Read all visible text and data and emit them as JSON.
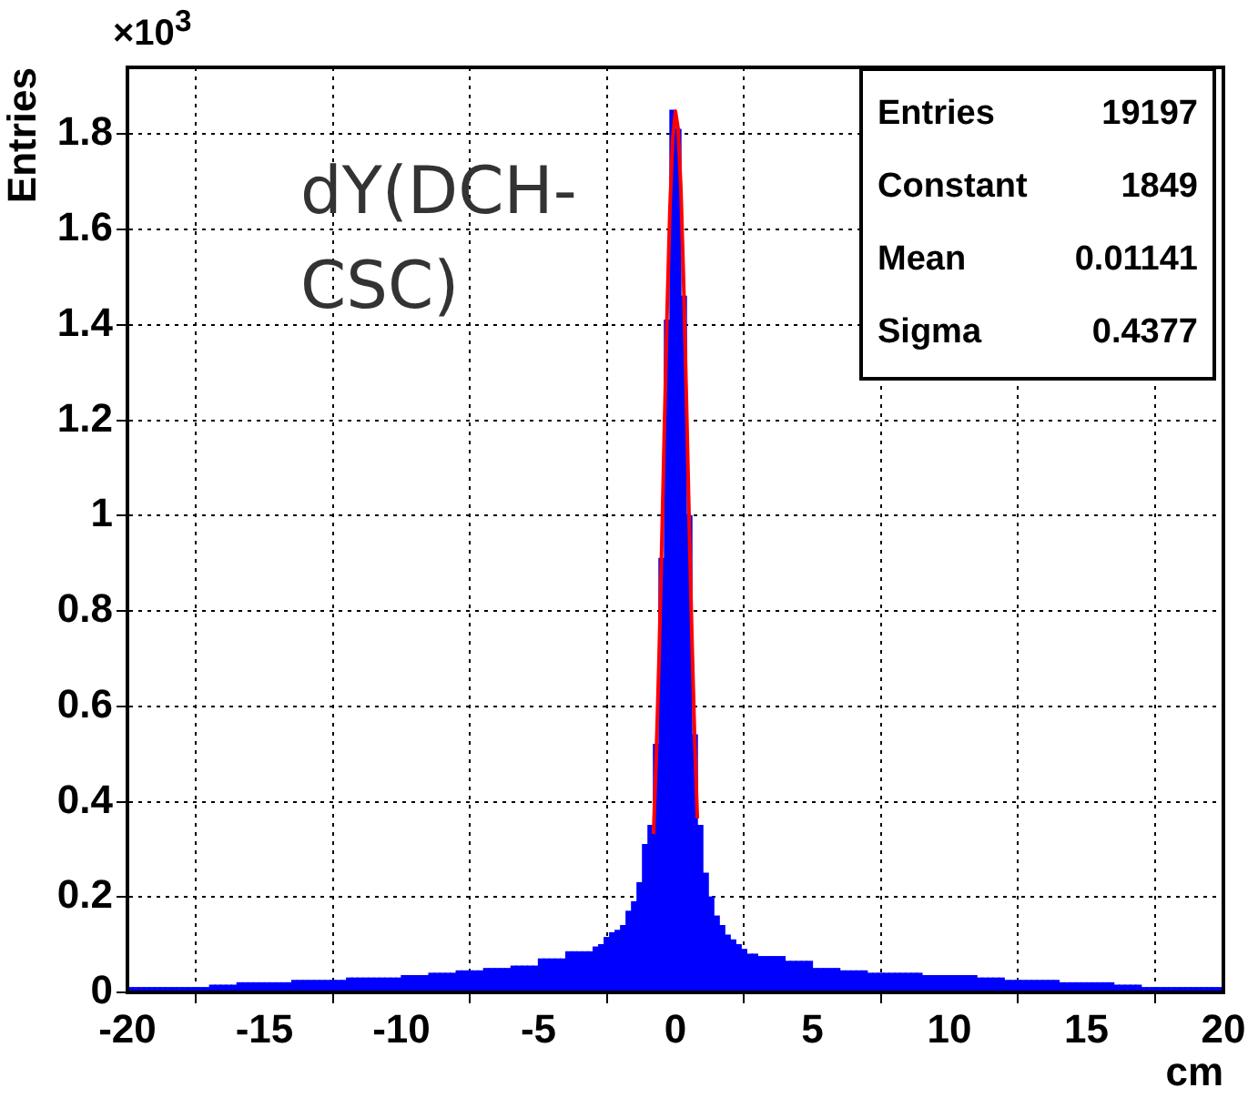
{
  "chart_data": {
    "type": "histogram",
    "xlabel": "cm",
    "ylabel": "Entries",
    "annotations": [
      "×10$^{3}$",
      "dY(DCH-CSC)",
      "Entries",
      "19197",
      "Constant",
      "1849",
      "Mean",
      "0.01141",
      "Sigma",
      "0.4377"
    ],
    "bins": [
      -20,
      -19.8,
      -19.6,
      -19.4,
      -19.2,
      -19,
      -18.8,
      -18.6,
      -18.4,
      -18.2,
      -18,
      -17.8,
      -17.6,
      -17.4,
      -17.2,
      -17,
      -16.8,
      -16.6,
      -16.4,
      -16.2,
      -16,
      -15.8,
      -15.6,
      -15.4,
      -15.2,
      -15,
      -14.8,
      -14.6,
      -14.4,
      -14.2,
      -14,
      -13.8,
      -13.6,
      -13.4,
      -13.2,
      -13,
      -12.8,
      -12.6,
      -12.4,
      -12.2,
      -12,
      -11.8,
      -11.6,
      -11.4,
      -11.2,
      -11,
      -10.8,
      -10.6,
      -10.4,
      -10.2,
      -10,
      -9.8,
      -9.6,
      -9.4,
      -9.2,
      -9,
      -8.8,
      -8.6,
      -8.4,
      -8.2,
      -8,
      -7.8,
      -7.6,
      -7.4,
      -7.2,
      -7,
      -6.8,
      -6.6,
      -6.4,
      -6.2,
      -6,
      -5.8,
      -5.6,
      -5.4,
      -5.2,
      -5,
      -4.8,
      -4.6,
      -4.4,
      -4.2,
      -4,
      -3.8,
      -3.6,
      -3.4,
      -3.2,
      -3,
      -2.8,
      -2.6,
      -2.4,
      -2.2,
      -2,
      -1.8,
      -1.6,
      -1.4,
      -1.2,
      -1,
      -0.8,
      -0.6,
      -0.4,
      -0.2,
      0,
      0.2,
      0.4,
      0.6,
      0.8,
      1,
      1.2,
      1.4,
      1.6,
      1.8,
      2,
      2.2,
      2.4,
      2.6,
      2.8,
      3,
      3.2,
      3.4,
      3.6,
      3.8,
      4,
      4.2,
      4.4,
      4.6,
      4.8,
      5,
      5.2,
      5.4,
      5.6,
      5.8,
      6,
      6.2,
      6.4,
      6.6,
      6.8,
      7,
      7.2,
      7.4,
      7.6,
      7.8,
      8,
      8.2,
      8.4,
      8.6,
      8.8,
      9,
      9.2,
      9.4,
      9.6,
      9.8,
      10,
      10.2,
      10.4,
      10.6,
      10.8,
      11,
      11.2,
      11.4,
      11.6,
      11.8,
      12,
      12.2,
      12.4,
      12.6,
      12.8,
      13,
      13.2,
      13.4,
      13.6,
      13.8,
      14,
      14.2,
      14.4,
      14.6,
      14.8,
      15,
      15.2,
      15.4,
      15.6,
      15.8,
      16,
      16.2,
      16.4,
      16.6,
      16.8,
      17,
      17.2,
      17.4,
      17.6,
      17.8,
      18,
      18.2,
      18.4,
      18.6,
      18.8,
      19,
      19.2,
      19.4,
      19.6,
      19.8,
      20
    ],
    "values": [
      0.01,
      0.01,
      0.01,
      0.01,
      0.01,
      0.01,
      0.01,
      0.01,
      0.01,
      0.01,
      0.01,
      0.01,
      0.01,
      0.01,
      0.01,
      0.015,
      0.015,
      0.015,
      0.015,
      0.015,
      0.02,
      0.02,
      0.02,
      0.02,
      0.02,
      0.02,
      0.02,
      0.02,
      0.02,
      0.02,
      0.025,
      0.025,
      0.025,
      0.025,
      0.025,
      0.025,
      0.025,
      0.025,
      0.025,
      0.025,
      0.03,
      0.03,
      0.03,
      0.03,
      0.03,
      0.03,
      0.03,
      0.03,
      0.03,
      0.03,
      0.035,
      0.035,
      0.035,
      0.035,
      0.035,
      0.04,
      0.04,
      0.04,
      0.04,
      0.04,
      0.045,
      0.045,
      0.045,
      0.045,
      0.045,
      0.05,
      0.05,
      0.05,
      0.05,
      0.05,
      0.055,
      0.055,
      0.055,
      0.055,
      0.055,
      0.07,
      0.07,
      0.07,
      0.07,
      0.07,
      0.085,
      0.085,
      0.085,
      0.085,
      0.085,
      0.095,
      0.1,
      0.115,
      0.125,
      0.13,
      0.14,
      0.17,
      0.19,
      0.23,
      0.31,
      0.35,
      0.52,
      0.91,
      1.41,
      1.85,
      1.81,
      1.46,
      1.0,
      0.54,
      0.35,
      0.25,
      0.2,
      0.16,
      0.14,
      0.12,
      0.11,
      0.1,
      0.09,
      0.08,
      0.08,
      0.075,
      0.075,
      0.075,
      0.075,
      0.075,
      0.065,
      0.065,
      0.065,
      0.065,
      0.065,
      0.05,
      0.05,
      0.05,
      0.05,
      0.05,
      0.045,
      0.045,
      0.045,
      0.045,
      0.045,
      0.04,
      0.04,
      0.04,
      0.04,
      0.04,
      0.04,
      0.04,
      0.04,
      0.04,
      0.04,
      0.035,
      0.035,
      0.035,
      0.035,
      0.035,
      0.035,
      0.035,
      0.035,
      0.035,
      0.035,
      0.03,
      0.03,
      0.03,
      0.03,
      0.03,
      0.025,
      0.025,
      0.025,
      0.025,
      0.025,
      0.025,
      0.025,
      0.025,
      0.025,
      0.025,
      0.02,
      0.02,
      0.02,
      0.02,
      0.02,
      0.02,
      0.02,
      0.02,
      0.02,
      0.02,
      0.015,
      0.015,
      0.015,
      0.015,
      0.015,
      0.01,
      0.01,
      0.01,
      0.01,
      0.01,
      0.01,
      0.01,
      0.01,
      0.01,
      0.01,
      0.01,
      0.01,
      0.01,
      0.01,
      0.01
    ],
    "color": "#0000ff",
    "series": [
      {
        "type": "line",
        "color": "#ff0000",
        "x": [
          -0.8,
          -0.7,
          -0.6,
          -0.5,
          -0.4,
          -0.3,
          -0.2,
          -0.1,
          0,
          0.1,
          0.2,
          0.3,
          0.4,
          0.5,
          0.6,
          0.7,
          0.8
        ],
        "values": [
          0.332,
          0.494,
          0.697,
          0.934,
          1.189,
          1.436,
          1.645,
          1.79,
          1.848,
          1.811,
          1.685,
          1.488,
          1.247,
          0.992,
          0.749,
          0.536,
          0.365
        ]
      }
    ],
    "xlim": [
      -20,
      20
    ],
    "ylim": [
      0,
      1.94
    ],
    "xticks": [
      -20,
      -15,
      -10,
      -5,
      0,
      5,
      10,
      15,
      20
    ],
    "yticks": [
      0,
      0.2,
      0.4,
      0.6,
      0.8,
      1,
      1.2,
      1.4,
      1.6,
      1.8
    ],
    "grid": true,
    "legend": false
  }
}
